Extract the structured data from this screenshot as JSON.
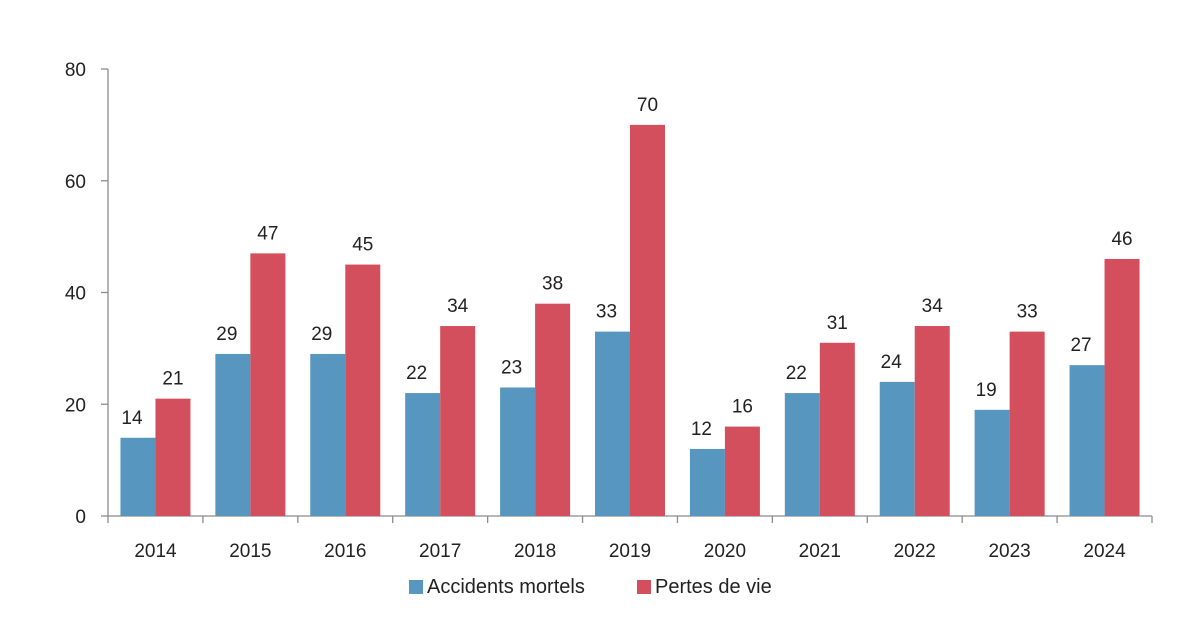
{
  "chart_data": {
    "type": "bar",
    "title": "",
    "xlabel": "",
    "ylabel": "",
    "categories": [
      "2014",
      "2015",
      "2016",
      "2017",
      "2018",
      "2019",
      "2020",
      "2021",
      "2022",
      "2023",
      "2024"
    ],
    "series": [
      {
        "name": "Accidents mortels",
        "color": "#5796be",
        "values": [
          14,
          29,
          29,
          22,
          23,
          33,
          12,
          22,
          24,
          19,
          27
        ]
      },
      {
        "name": "Pertes de vie",
        "color": "#d44f5e",
        "values": [
          21,
          47,
          45,
          34,
          38,
          70,
          16,
          31,
          34,
          33,
          46
        ]
      }
    ],
    "ylim": [
      0,
      80
    ],
    "yticks": [
      0,
      20,
      40,
      60,
      80
    ],
    "grid": false,
    "legend_position": "bottom-center",
    "data_labels": true
  }
}
